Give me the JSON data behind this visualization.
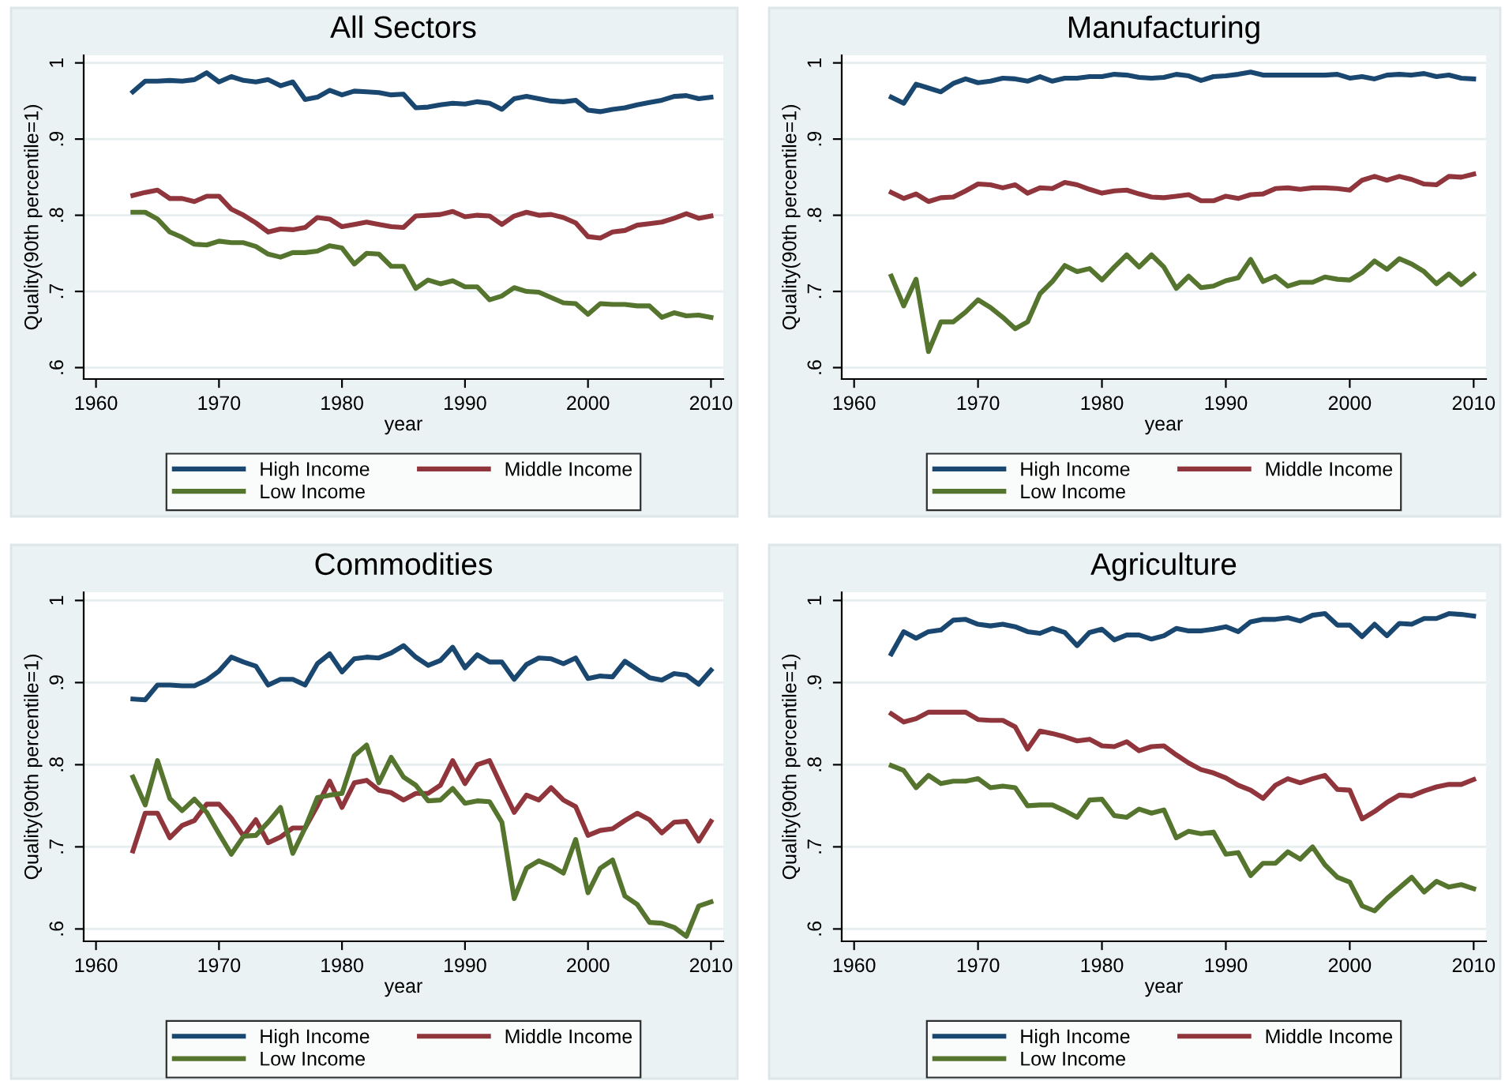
{
  "chart_data": [
    {
      "type": "line",
      "title": "All Sectors",
      "xlabel": "year",
      "ylabel": "Quality(90th percentile=1)",
      "legend": "bottom",
      "grid": "y",
      "x": [
        1963,
        1964,
        1965,
        1966,
        1967,
        1968,
        1969,
        1970,
        1971,
        1972,
        1973,
        1974,
        1975,
        1976,
        1977,
        1978,
        1979,
        1980,
        1981,
        1982,
        1983,
        1984,
        1985,
        1986,
        1987,
        1988,
        1989,
        1990,
        1991,
        1992,
        1993,
        1994,
        1995,
        1996,
        1997,
        1998,
        1999,
        2000,
        2001,
        2002,
        2003,
        2004,
        2005,
        2006,
        2007,
        2008,
        2009,
        2010
      ],
      "xlim": [
        1959,
        2011
      ],
      "xticks": [
        1960,
        1970,
        1980,
        1990,
        2000,
        2010
      ],
      "ylim": [
        0.585,
        1.01
      ],
      "yticks": [
        {
          "value": 0.6,
          "label": ".6"
        },
        {
          "value": 0.7,
          "label": ".7"
        },
        {
          "value": 0.8,
          "label": ".8"
        },
        {
          "value": 0.9,
          "label": ".9"
        },
        1
      ],
      "series": [
        {
          "name": "High Income",
          "color": "#1a476f",
          "values": [
            0.962,
            0.976,
            0.976,
            0.977,
            0.976,
            0.978,
            0.987,
            0.975,
            0.982,
            0.977,
            0.975,
            0.978,
            0.97,
            0.975,
            0.952,
            0.955,
            0.964,
            0.958,
            0.963,
            0.962,
            0.961,
            0.958,
            0.959,
            0.941,
            0.942,
            0.945,
            0.947,
            0.946,
            0.949,
            0.947,
            0.939,
            0.953,
            0.956,
            0.953,
            0.95,
            0.949,
            0.951,
            0.938,
            0.936,
            0.939,
            0.941,
            0.945,
            0.948,
            0.951,
            0.956,
            0.957,
            0.953,
            0.955
          ]
        },
        {
          "name": "Middle Income",
          "color": "#90353b",
          "values": [
            0.826,
            0.83,
            0.833,
            0.822,
            0.822,
            0.818,
            0.825,
            0.825,
            0.808,
            0.8,
            0.79,
            0.778,
            0.782,
            0.781,
            0.784,
            0.797,
            0.795,
            0.785,
            0.788,
            0.791,
            0.788,
            0.785,
            0.784,
            0.799,
            0.8,
            0.801,
            0.805,
            0.798,
            0.8,
            0.799,
            0.788,
            0.799,
            0.804,
            0.8,
            0.801,
            0.797,
            0.79,
            0.772,
            0.77,
            0.778,
            0.78,
            0.787,
            0.789,
            0.791,
            0.796,
            0.802,
            0.796,
            0.799
          ]
        },
        {
          "name": "Low Income",
          "color": "#55752f",
          "values": [
            0.804,
            0.804,
            0.795,
            0.778,
            0.771,
            0.762,
            0.761,
            0.766,
            0.764,
            0.764,
            0.759,
            0.749,
            0.745,
            0.751,
            0.751,
            0.753,
            0.76,
            0.757,
            0.736,
            0.75,
            0.749,
            0.733,
            0.733,
            0.704,
            0.715,
            0.71,
            0.714,
            0.706,
            0.706,
            0.689,
            0.694,
            0.705,
            0.7,
            0.699,
            0.692,
            0.685,
            0.684,
            0.67,
            0.684,
            0.683,
            0.683,
            0.681,
            0.681,
            0.666,
            0.672,
            0.668,
            0.669,
            0.666
          ]
        }
      ]
    },
    {
      "type": "line",
      "title": "Manufacturing",
      "xlabel": "year",
      "ylabel": "Quality(90th percentile=1)",
      "legend": "bottom",
      "grid": "y",
      "x": [
        1963,
        1964,
        1965,
        1966,
        1967,
        1968,
        1969,
        1970,
        1971,
        1972,
        1973,
        1974,
        1975,
        1976,
        1977,
        1978,
        1979,
        1980,
        1981,
        1982,
        1983,
        1984,
        1985,
        1986,
        1987,
        1988,
        1989,
        1990,
        1991,
        1992,
        1993,
        1994,
        1995,
        1996,
        1997,
        1998,
        1999,
        2000,
        2001,
        2002,
        2003,
        2004,
        2005,
        2006,
        2007,
        2008,
        2009,
        2010
      ],
      "xlim": [
        1959,
        2011
      ],
      "xticks": [
        1960,
        1970,
        1980,
        1990,
        2000,
        2010
      ],
      "ylim": [
        0.585,
        1.01
      ],
      "yticks": [
        {
          "value": 0.6,
          "label": ".6"
        },
        {
          "value": 0.7,
          "label": ".7"
        },
        {
          "value": 0.8,
          "label": ".8"
        },
        {
          "value": 0.9,
          "label": ".9"
        },
        1
      ],
      "series": [
        {
          "name": "High Income",
          "color": "#1a476f",
          "values": [
            0.955,
            0.947,
            0.972,
            0.967,
            0.962,
            0.973,
            0.979,
            0.974,
            0.976,
            0.98,
            0.979,
            0.976,
            0.982,
            0.976,
            0.98,
            0.98,
            0.982,
            0.982,
            0.985,
            0.984,
            0.981,
            0.98,
            0.981,
            0.985,
            0.983,
            0.977,
            0.982,
            0.983,
            0.985,
            0.988,
            0.984,
            0.984,
            0.984,
            0.984,
            0.984,
            0.984,
            0.985,
            0.98,
            0.982,
            0.979,
            0.984,
            0.985,
            0.984,
            0.986,
            0.982,
            0.984,
            0.98,
            0.979
          ]
        },
        {
          "name": "Middle Income",
          "color": "#90353b",
          "values": [
            0.83,
            0.822,
            0.828,
            0.818,
            0.823,
            0.824,
            0.832,
            0.841,
            0.84,
            0.836,
            0.84,
            0.829,
            0.836,
            0.835,
            0.843,
            0.84,
            0.834,
            0.829,
            0.832,
            0.833,
            0.828,
            0.824,
            0.823,
            0.825,
            0.827,
            0.819,
            0.819,
            0.825,
            0.822,
            0.827,
            0.828,
            0.835,
            0.836,
            0.834,
            0.836,
            0.836,
            0.835,
            0.833,
            0.846,
            0.851,
            0.846,
            0.851,
            0.847,
            0.841,
            0.84,
            0.851,
            0.85,
            0.854
          ]
        },
        {
          "name": "Low Income",
          "color": "#55752f",
          "values": [
            0.72,
            0.681,
            0.716,
            0.621,
            0.66,
            0.66,
            0.673,
            0.689,
            0.679,
            0.666,
            0.651,
            0.66,
            0.697,
            0.713,
            0.734,
            0.726,
            0.73,
            0.715,
            0.732,
            0.748,
            0.732,
            0.748,
            0.732,
            0.704,
            0.72,
            0.705,
            0.707,
            0.714,
            0.718,
            0.742,
            0.713,
            0.72,
            0.707,
            0.712,
            0.712,
            0.719,
            0.716,
            0.715,
            0.725,
            0.74,
            0.729,
            0.743,
            0.736,
            0.726,
            0.71,
            0.723,
            0.709,
            0.722
          ]
        }
      ]
    },
    {
      "type": "line",
      "title": "Commodities",
      "xlabel": "year",
      "ylabel": "Quality(90th percentile=1)",
      "legend": "bottom",
      "grid": "y",
      "x": [
        1963,
        1964,
        1965,
        1966,
        1967,
        1968,
        1969,
        1970,
        1971,
        1972,
        1973,
        1974,
        1975,
        1976,
        1977,
        1978,
        1979,
        1980,
        1981,
        1982,
        1983,
        1984,
        1985,
        1986,
        1987,
        1988,
        1989,
        1990,
        1991,
        1992,
        1993,
        1994,
        1995,
        1996,
        1997,
        1998,
        1999,
        2000,
        2001,
        2002,
        2003,
        2004,
        2005,
        2006,
        2007,
        2008,
        2009,
        2010
      ],
      "xlim": [
        1959,
        2011
      ],
      "xticks": [
        1960,
        1970,
        1980,
        1990,
        2000,
        2010
      ],
      "ylim": [
        0.585,
        1.01
      ],
      "yticks": [
        {
          "value": 0.6,
          "label": ".6"
        },
        {
          "value": 0.7,
          "label": ".7"
        },
        {
          "value": 0.8,
          "label": ".8"
        },
        {
          "value": 0.9,
          "label": ".9"
        },
        1
      ],
      "series": [
        {
          "name": "High Income",
          "color": "#1a476f",
          "values": [
            0.88,
            0.879,
            0.897,
            0.897,
            0.896,
            0.896,
            0.903,
            0.914,
            0.931,
            0.925,
            0.92,
            0.897,
            0.904,
            0.904,
            0.897,
            0.923,
            0.935,
            0.913,
            0.929,
            0.931,
            0.93,
            0.936,
            0.945,
            0.931,
            0.921,
            0.927,
            0.943,
            0.918,
            0.934,
            0.925,
            0.925,
            0.904,
            0.922,
            0.93,
            0.929,
            0.923,
            0.93,
            0.905,
            0.908,
            0.907,
            0.926,
            0.916,
            0.906,
            0.903,
            0.911,
            0.909,
            0.898,
            0.915
          ]
        },
        {
          "name": "Middle Income",
          "color": "#90353b",
          "values": [
            0.695,
            0.741,
            0.741,
            0.711,
            0.726,
            0.732,
            0.752,
            0.752,
            0.735,
            0.713,
            0.733,
            0.705,
            0.712,
            0.723,
            0.723,
            0.75,
            0.78,
            0.748,
            0.778,
            0.781,
            0.769,
            0.766,
            0.757,
            0.765,
            0.765,
            0.775,
            0.805,
            0.777,
            0.8,
            0.805,
            0.773,
            0.742,
            0.763,
            0.757,
            0.772,
            0.757,
            0.749,
            0.714,
            0.72,
            0.722,
            0.732,
            0.741,
            0.733,
            0.717,
            0.73,
            0.731,
            0.707,
            0.731
          ]
        },
        {
          "name": "Low Income",
          "color": "#55752f",
          "values": [
            0.785,
            0.751,
            0.805,
            0.759,
            0.744,
            0.758,
            0.742,
            0.716,
            0.691,
            0.713,
            0.714,
            0.73,
            0.748,
            0.692,
            0.723,
            0.76,
            0.763,
            0.765,
            0.811,
            0.824,
            0.778,
            0.809,
            0.785,
            0.775,
            0.756,
            0.757,
            0.771,
            0.753,
            0.756,
            0.755,
            0.73,
            0.637,
            0.674,
            0.683,
            0.677,
            0.668,
            0.709,
            0.644,
            0.674,
            0.684,
            0.64,
            0.63,
            0.608,
            0.607,
            0.602,
            0.591,
            0.628,
            0.633
          ]
        }
      ]
    },
    {
      "type": "line",
      "title": "Agriculture",
      "xlabel": "year",
      "ylabel": "Quality(90th percentile=1)",
      "legend": "bottom",
      "grid": "y",
      "x": [
        1963,
        1964,
        1965,
        1966,
        1967,
        1968,
        1969,
        1970,
        1971,
        1972,
        1973,
        1974,
        1975,
        1976,
        1977,
        1978,
        1979,
        1980,
        1981,
        1982,
        1983,
        1984,
        1985,
        1986,
        1987,
        1988,
        1989,
        1990,
        1991,
        1992,
        1993,
        1994,
        1995,
        1996,
        1997,
        1998,
        1999,
        2000,
        2001,
        2002,
        2003,
        2004,
        2005,
        2006,
        2007,
        2008,
        2009,
        2010
      ],
      "xlim": [
        1959,
        2011
      ],
      "xticks": [
        1960,
        1970,
        1980,
        1990,
        2000,
        2010
      ],
      "ylim": [
        0.585,
        1.01
      ],
      "yticks": [
        {
          "value": 0.6,
          "label": ".6"
        },
        {
          "value": 0.7,
          "label": ".7"
        },
        {
          "value": 0.8,
          "label": ".8"
        },
        {
          "value": 0.9,
          "label": ".9"
        },
        1
      ],
      "series": [
        {
          "name": "High Income",
          "color": "#1a476f",
          "values": [
            0.935,
            0.962,
            0.954,
            0.962,
            0.964,
            0.976,
            0.977,
            0.971,
            0.969,
            0.971,
            0.968,
            0.962,
            0.96,
            0.966,
            0.961,
            0.945,
            0.961,
            0.965,
            0.952,
            0.958,
            0.958,
            0.953,
            0.957,
            0.966,
            0.963,
            0.963,
            0.965,
            0.968,
            0.962,
            0.974,
            0.977,
            0.977,
            0.979,
            0.975,
            0.982,
            0.984,
            0.97,
            0.97,
            0.956,
            0.971,
            0.957,
            0.972,
            0.971,
            0.978,
            0.978,
            0.984,
            0.983,
            0.981
          ]
        },
        {
          "name": "Middle Income",
          "color": "#90353b",
          "values": [
            0.862,
            0.852,
            0.856,
            0.864,
            0.864,
            0.864,
            0.864,
            0.855,
            0.854,
            0.854,
            0.846,
            0.819,
            0.841,
            0.838,
            0.834,
            0.829,
            0.831,
            0.823,
            0.822,
            0.828,
            0.817,
            0.822,
            0.823,
            0.812,
            0.802,
            0.794,
            0.79,
            0.784,
            0.775,
            0.769,
            0.759,
            0.775,
            0.783,
            0.778,
            0.783,
            0.787,
            0.77,
            0.769,
            0.734,
            0.743,
            0.754,
            0.763,
            0.762,
            0.768,
            0.773,
            0.776,
            0.776,
            0.782
          ]
        },
        {
          "name": "Low Income",
          "color": "#55752f",
          "values": [
            0.799,
            0.793,
            0.772,
            0.787,
            0.777,
            0.78,
            0.78,
            0.783,
            0.772,
            0.774,
            0.772,
            0.75,
            0.751,
            0.751,
            0.744,
            0.736,
            0.757,
            0.758,
            0.738,
            0.736,
            0.746,
            0.741,
            0.745,
            0.711,
            0.719,
            0.716,
            0.718,
            0.691,
            0.693,
            0.665,
            0.68,
            0.68,
            0.694,
            0.685,
            0.7,
            0.678,
            0.663,
            0.657,
            0.628,
            0.622,
            0.637,
            0.65,
            0.663,
            0.645,
            0.658,
            0.651,
            0.654,
            0.649
          ]
        }
      ]
    }
  ]
}
